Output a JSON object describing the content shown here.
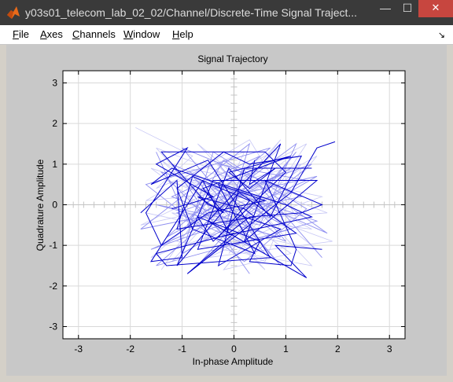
{
  "window": {
    "title": "y03s01_telecom_lab_02_02/Channel/Discrete-Time Signal Traject...",
    "icon": "matlab-icon",
    "controls": {
      "minimize": "—",
      "maximize": "☐",
      "close": "✕"
    }
  },
  "menu": {
    "items": [
      {
        "label": "File",
        "hotkey": "F",
        "rest": "ile"
      },
      {
        "label": "Axes",
        "hotkey": "A",
        "rest": "xes"
      },
      {
        "label": "Channels",
        "hotkey": "C",
        "rest": "hannels"
      },
      {
        "label": "Window",
        "hotkey": "W",
        "rest": "indow"
      },
      {
        "label": "Help",
        "hotkey": "H",
        "rest": "elp"
      }
    ],
    "dock_icon": "dock-arrow-icon"
  },
  "chart_data": {
    "type": "line",
    "title": "Signal Trajectory",
    "xlabel": "In-phase Amplitude",
    "ylabel": "Quadrature Amplitude",
    "xlim": [
      -3.3,
      3.3
    ],
    "ylim": [
      -3.3,
      3.3
    ],
    "xticks": [
      -3,
      -2,
      -1,
      0,
      1,
      2,
      3
    ],
    "yticks": [
      -3,
      -2,
      -1,
      0,
      1,
      2,
      3
    ],
    "grid": true,
    "colors": {
      "recent": "#0000cc",
      "faded": "#8f8ff0",
      "faint": "#c8c8f5"
    },
    "series": [
      {
        "style": "faint",
        "points": [
          [
            -1.9,
            1.9
          ],
          [
            -0.8,
            1.2
          ],
          [
            -1.5,
            0.4
          ],
          [
            0.2,
            1.3
          ],
          [
            -0.6,
            -0.9
          ],
          [
            1.3,
            0.9
          ],
          [
            0.6,
            -1.4
          ],
          [
            -1.2,
            -0.2
          ],
          [
            1.5,
            -0.6
          ],
          [
            -0.3,
            0.6
          ],
          [
            0.9,
            1.4
          ],
          [
            -1.6,
            -1.3
          ],
          [
            0.1,
            -0.5
          ],
          [
            1.7,
            0.2
          ],
          [
            -0.9,
            0.9
          ],
          [
            0.4,
            -1.1
          ],
          [
            -1.4,
            1.1
          ],
          [
            1.1,
            -1.2
          ],
          [
            -0.2,
            -1.6
          ],
          [
            1.6,
            1.2
          ],
          [
            -1.0,
            -0.6
          ],
          [
            0.7,
            0.4
          ],
          [
            -1.7,
            0.1
          ],
          [
            0.3,
            1.6
          ],
          [
            1.2,
            -0.3
          ],
          [
            -0.5,
            -1.3
          ],
          [
            1.9,
            -0.9
          ],
          [
            -1.3,
            0.6
          ],
          [
            0.0,
            0.1
          ],
          [
            1.0,
            1.1
          ]
        ]
      },
      {
        "style": "faint",
        "points": [
          [
            -1.4,
            -1.6
          ],
          [
            -0.4,
            0.3
          ],
          [
            1.4,
            1.5
          ],
          [
            0.2,
            -0.8
          ],
          [
            -1.6,
            0.9
          ],
          [
            0.8,
            -0.1
          ],
          [
            -0.7,
            1.5
          ],
          [
            1.5,
            -1.5
          ],
          [
            -1.1,
            -0.9
          ],
          [
            0.5,
            0.9
          ],
          [
            -1.8,
            -0.5
          ],
          [
            1.0,
            0.3
          ],
          [
            -0.1,
            -1.2
          ],
          [
            1.3,
            1.0
          ],
          [
            -0.9,
            0.2
          ],
          [
            0.6,
            -1.6
          ],
          [
            -1.5,
            1.4
          ],
          [
            1.8,
            -0.2
          ],
          [
            -0.3,
            -0.4
          ],
          [
            0.9,
            1.6
          ],
          [
            -1.2,
            -1.4
          ],
          [
            0.4,
            0.0
          ],
          [
            -0.6,
            1.1
          ],
          [
            1.6,
            -1.1
          ],
          [
            -1.7,
            -0.2
          ]
        ]
      },
      {
        "style": "faded",
        "points": [
          [
            -1.5,
            1.3
          ],
          [
            -0.9,
            -0.4
          ],
          [
            0.5,
            1.2
          ],
          [
            -1.2,
            0.2
          ],
          [
            1.0,
            -0.9
          ],
          [
            -0.3,
            1.0
          ],
          [
            1.4,
            0.6
          ],
          [
            -1.6,
            -1.1
          ],
          [
            0.2,
            -0.3
          ],
          [
            1.2,
            1.3
          ],
          [
            -0.7,
            -1.5
          ],
          [
            0.8,
            0.1
          ],
          [
            -1.4,
            0.8
          ],
          [
            0.0,
            -1.0
          ],
          [
            1.6,
            -0.4
          ],
          [
            -0.5,
            0.5
          ],
          [
            0.9,
            -1.5
          ],
          [
            -1.0,
            1.4
          ],
          [
            1.3,
            0.2
          ],
          [
            -1.8,
            -0.6
          ],
          [
            0.3,
            1.5
          ],
          [
            -0.2,
            -0.7
          ],
          [
            1.5,
            1.0
          ],
          [
            -1.1,
            -0.2
          ],
          [
            0.6,
            -1.2
          ],
          [
            -0.8,
            0.7
          ],
          [
            1.1,
            -0.6
          ],
          [
            -1.5,
            -1.5
          ],
          [
            0.4,
            0.6
          ],
          [
            1.7,
            -1.3
          ]
        ]
      },
      {
        "style": "faded",
        "points": [
          [
            -0.6,
            -0.2
          ],
          [
            1.1,
            0.9
          ],
          [
            -1.3,
            -0.8
          ],
          [
            0.7,
            1.4
          ],
          [
            -1.7,
            0.5
          ],
          [
            0.2,
            -1.4
          ],
          [
            1.4,
            -0.1
          ],
          [
            -0.4,
            1.3
          ],
          [
            -1.0,
            -1.2
          ],
          [
            1.6,
            0.7
          ],
          [
            -0.1,
            0.2
          ],
          [
            0.9,
            -0.8
          ],
          [
            -1.5,
            0.0
          ],
          [
            0.5,
            -0.5
          ],
          [
            1.2,
            1.5
          ],
          [
            -0.9,
            -0.5
          ],
          [
            -0.2,
            1.1
          ],
          [
            1.8,
            -0.7
          ],
          [
            -1.2,
            1.0
          ],
          [
            0.3,
            -1.7
          ]
        ]
      },
      {
        "style": "recent",
        "points": [
          [
            -1.2,
            -0.1
          ],
          [
            -0.4,
            0.2
          ],
          [
            -1.5,
            1.0
          ],
          [
            -0.9,
            1.4
          ],
          [
            -1.7,
            -0.2
          ],
          [
            -1.4,
            -1.0
          ],
          [
            -0.5,
            -0.2
          ],
          [
            0.6,
            0.1
          ],
          [
            -0.3,
            0.5
          ],
          [
            0.4,
            -1.2
          ],
          [
            -0.8,
            -0.6
          ],
          [
            -1.1,
            0.4
          ],
          [
            -0.2,
            1.3
          ],
          [
            0.3,
            1.0
          ],
          [
            1.3,
            1.2
          ],
          [
            0.7,
            -0.3
          ],
          [
            -0.1,
            0.9
          ],
          [
            -0.7,
            -1.1
          ],
          [
            1.2,
            -0.7
          ],
          [
            0.1,
            0.3
          ],
          [
            -1.1,
            -1.5
          ],
          [
            -0.4,
            0.6
          ],
          [
            1.6,
            0.6
          ],
          [
            0.2,
            -0.9
          ],
          [
            0.9,
            1.5
          ],
          [
            -0.5,
            -0.4
          ],
          [
            1.4,
            -1.8
          ],
          [
            0.8,
            -1.0
          ],
          [
            1.7,
            -1.1
          ]
        ]
      },
      {
        "style": "recent",
        "points": [
          [
            0.4,
            1.1
          ],
          [
            0.3,
            0.5
          ],
          [
            0.8,
            0.9
          ],
          [
            0.3,
            0.4
          ],
          [
            -0.1,
            0.8
          ],
          [
            1.1,
            1.2
          ],
          [
            -0.6,
            0.4
          ],
          [
            -0.2,
            -0.2
          ],
          [
            -0.7,
            0.2
          ],
          [
            0.2,
            -0.1
          ],
          [
            0.4,
            -0.3
          ],
          [
            -1.1,
            -0.6
          ],
          [
            -0.8,
            0.7
          ],
          [
            0.3,
            0.1
          ],
          [
            -0.3,
            -0.8
          ],
          [
            1.5,
            -0.3
          ],
          [
            1.0,
            0.0
          ],
          [
            -1.2,
            0.9
          ],
          [
            -1.6,
            0.5
          ],
          [
            -0.5,
            1.1
          ],
          [
            0.7,
            -1.3
          ],
          [
            -1.3,
            -1.5
          ],
          [
            -1.5,
            -1.2
          ],
          [
            0.0,
            -0.7
          ],
          [
            -0.9,
            -1.7
          ],
          [
            -0.2,
            -1.0
          ],
          [
            1.1,
            0.3
          ],
          [
            1.6,
            1.4
          ],
          [
            1.95,
            1.55
          ]
        ]
      },
      {
        "style": "recent",
        "points": [
          [
            -1.8,
            -0.2
          ],
          [
            -1.1,
            0.6
          ],
          [
            -1.0,
            -1.3
          ],
          [
            -1.6,
            -1.4
          ],
          [
            -0.6,
            0.6
          ],
          [
            -0.1,
            -0.7
          ],
          [
            0.3,
            -0.3
          ],
          [
            1.3,
            -0.2
          ],
          [
            1.7,
            0.0
          ],
          [
            0.6,
            0.6
          ],
          [
            1.2,
            -1.1
          ],
          [
            1.1,
            -1.5
          ],
          [
            0.3,
            -1.4
          ],
          [
            0.5,
            -0.9
          ],
          [
            -0.7,
            -0.3
          ],
          [
            -0.4,
            -0.9
          ],
          [
            1.0,
            0.8
          ],
          [
            0.6,
            1.3
          ],
          [
            -1.4,
            1.3
          ],
          [
            -0.5,
            0.0
          ],
          [
            0.9,
            -0.6
          ],
          [
            -0.3,
            -1.5
          ],
          [
            0.2,
            0.9
          ],
          [
            1.5,
            0.9
          ]
        ]
      }
    ]
  }
}
